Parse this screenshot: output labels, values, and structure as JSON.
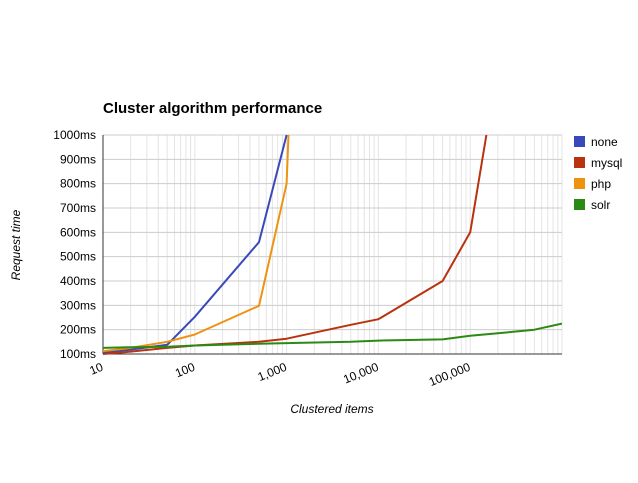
{
  "chart_data": {
    "type": "line",
    "title": "Cluster algorithm performance",
    "xlabel": "Clustered items",
    "ylabel": "Request time",
    "x_scale": "log",
    "x_range": [
      10,
      1000000
    ],
    "y_range": [
      100,
      1000
    ],
    "x_ticks": [
      {
        "value": 10,
        "label": "10"
      },
      {
        "value": 100,
        "label": "100"
      },
      {
        "value": 1000,
        "label": "1,000"
      },
      {
        "value": 10000,
        "label": "10,000"
      },
      {
        "value": 100000,
        "label": "100,000"
      }
    ],
    "y_ticks": [
      {
        "value": 100,
        "label": "100ms"
      },
      {
        "value": 200,
        "label": "200ms"
      },
      {
        "value": 300,
        "label": "300ms"
      },
      {
        "value": 400,
        "label": "400ms"
      },
      {
        "value": 500,
        "label": "500ms"
      },
      {
        "value": 600,
        "label": "600ms"
      },
      {
        "value": 700,
        "label": "700ms"
      },
      {
        "value": 800,
        "label": "800ms"
      },
      {
        "value": 900,
        "label": "900ms"
      },
      {
        "value": 1000,
        "label": "1000ms"
      }
    ],
    "grid": true,
    "legend_position": "right",
    "series": [
      {
        "name": "none",
        "color": "#3a49b9",
        "points": [
          [
            10,
            105
          ],
          [
            20,
            118
          ],
          [
            50,
            138
          ],
          [
            100,
            253
          ],
          [
            500,
            560
          ],
          [
            1000,
            1000
          ]
        ]
      },
      {
        "name": "mysql",
        "color": "#b8330e",
        "points": [
          [
            10,
            100
          ],
          [
            20,
            110
          ],
          [
            50,
            125
          ],
          [
            100,
            135
          ],
          [
            500,
            150
          ],
          [
            1000,
            163
          ],
          [
            5000,
            220
          ],
          [
            10000,
            243
          ],
          [
            50000,
            400
          ],
          [
            100000,
            600
          ],
          [
            150000,
            1000
          ]
        ]
      },
      {
        "name": "php",
        "color": "#ee9310",
        "points": [
          [
            10,
            112
          ],
          [
            20,
            125
          ],
          [
            50,
            150
          ],
          [
            100,
            180
          ],
          [
            500,
            298
          ],
          [
            1000,
            800
          ],
          [
            1050,
            1000
          ]
        ]
      },
      {
        "name": "solr",
        "color": "#2b8a13",
        "points": [
          [
            10,
            125
          ],
          [
            20,
            128
          ],
          [
            50,
            130
          ],
          [
            100,
            135
          ],
          [
            500,
            142
          ],
          [
            1000,
            145
          ],
          [
            5000,
            150
          ],
          [
            10000,
            155
          ],
          [
            50000,
            160
          ],
          [
            100000,
            175
          ],
          [
            200000,
            185
          ],
          [
            500000,
            200
          ],
          [
            1000000,
            225
          ]
        ]
      }
    ]
  }
}
